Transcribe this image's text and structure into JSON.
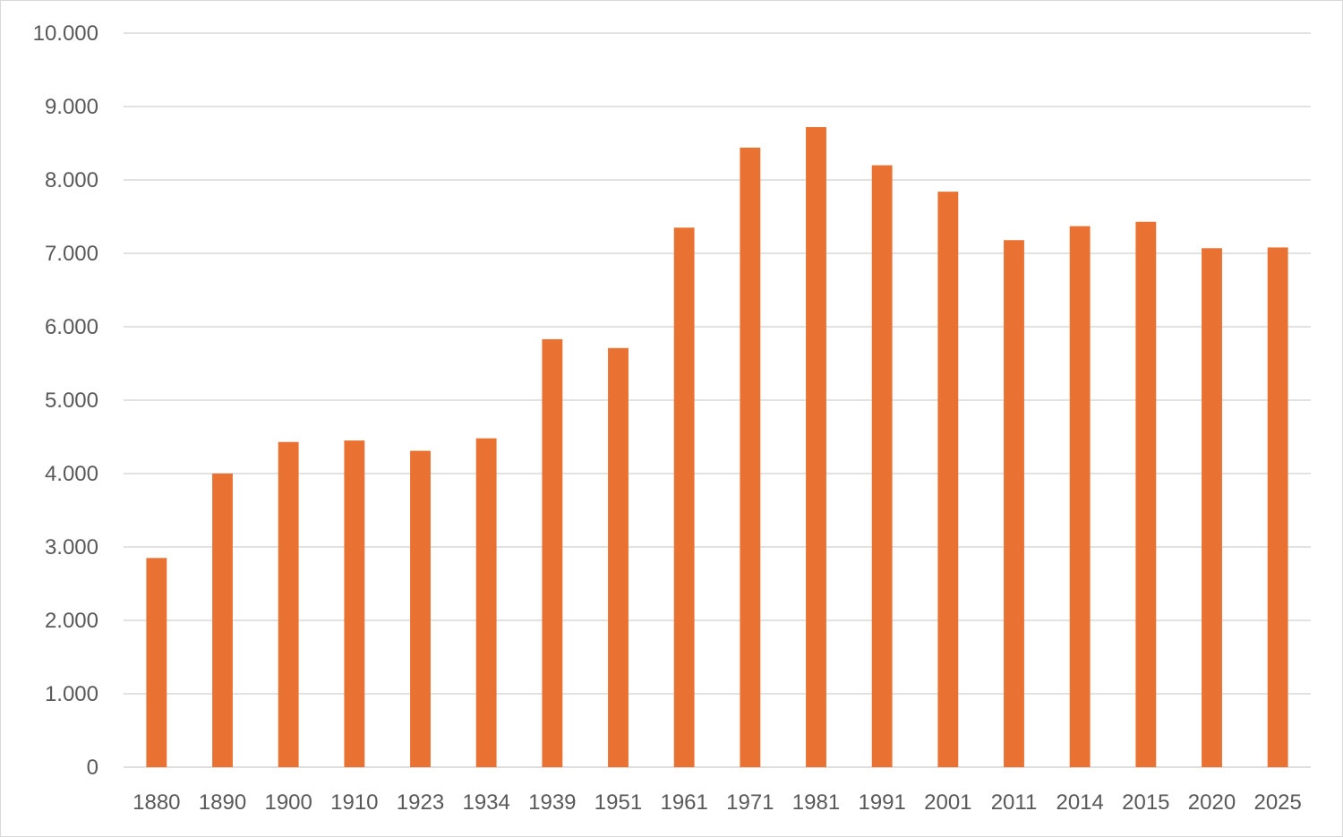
{
  "chart_data": {
    "type": "bar",
    "title": "",
    "xlabel": "",
    "ylabel": "",
    "categories": [
      "1880",
      "1890",
      "1900",
      "1910",
      "1923",
      "1934",
      "1939",
      "1951",
      "1961",
      "1971",
      "1981",
      "1991",
      "2001",
      "2011",
      "2014",
      "2015",
      "2020",
      "2025"
    ],
    "values": [
      2850,
      4000,
      4430,
      4450,
      4310,
      4480,
      5830,
      5710,
      7350,
      8440,
      8720,
      8200,
      7840,
      7180,
      7370,
      7430,
      7070,
      7080
    ],
    "ylim": [
      0,
      10000
    ],
    "yticks": [
      0,
      1000,
      2000,
      3000,
      4000,
      5000,
      6000,
      7000,
      8000,
      9000,
      10000
    ],
    "ytick_labels": [
      "0",
      "1.000",
      "2.000",
      "3.000",
      "4.000",
      "5.000",
      "6.000",
      "7.000",
      "8.000",
      "9.000",
      "10.000"
    ],
    "grid": true,
    "legend": "none",
    "bar_color": "#E97132",
    "grid_color": "#D9D9D9",
    "text_color": "#595959"
  }
}
